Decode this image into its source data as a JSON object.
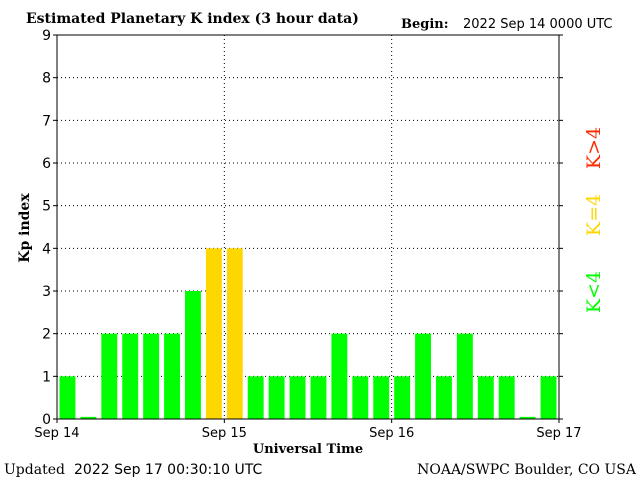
{
  "header": {
    "title": "Estimated Planetary K index (3 hour data)",
    "begin_label": "Begin:",
    "begin_value": "2022 Sep 14 0000 UTC"
  },
  "footer": {
    "updated_label": "Updated",
    "updated_value": "2022 Sep 17 00:30:10 UTC",
    "source": "NOAA/SWPC Boulder, CO USA"
  },
  "legend": {
    "gt4": "K>4",
    "eq4": "K=4",
    "lt4": "K<4"
  },
  "colors": {
    "lt4": "#00ff00",
    "eq4": "#ffd700",
    "gt4": "#ff2a00",
    "axis": "#000000",
    "grid": "#000000"
  },
  "chart_data": {
    "type": "bar",
    "title": "Estimated Planetary K index (3 hour data)",
    "xlabel": "Universal Time",
    "ylabel": "Kp index",
    "ylim": [
      0,
      9
    ],
    "yticks": [
      0,
      1,
      2,
      3,
      4,
      5,
      6,
      7,
      8,
      9
    ],
    "xticks": [
      "Sep 14",
      "Sep 15",
      "Sep 16",
      "Sep 17"
    ],
    "grid": true,
    "categories": [
      "2022-09-14 00",
      "2022-09-14 03",
      "2022-09-14 06",
      "2022-09-14 09",
      "2022-09-14 12",
      "2022-09-14 15",
      "2022-09-14 18",
      "2022-09-14 21",
      "2022-09-15 00",
      "2022-09-15 03",
      "2022-09-15 06",
      "2022-09-15 09",
      "2022-09-15 12",
      "2022-09-15 15",
      "2022-09-15 18",
      "2022-09-15 21",
      "2022-09-16 00",
      "2022-09-16 03",
      "2022-09-16 06",
      "2022-09-16 09",
      "2022-09-16 12",
      "2022-09-16 15",
      "2022-09-16 18",
      "2022-09-16 21"
    ],
    "values": [
      1,
      0.05,
      2,
      2,
      2,
      2,
      3,
      4,
      4,
      1,
      1,
      1,
      1,
      2,
      1,
      1,
      1,
      2,
      1,
      2,
      1,
      1,
      0.05,
      1
    ]
  }
}
